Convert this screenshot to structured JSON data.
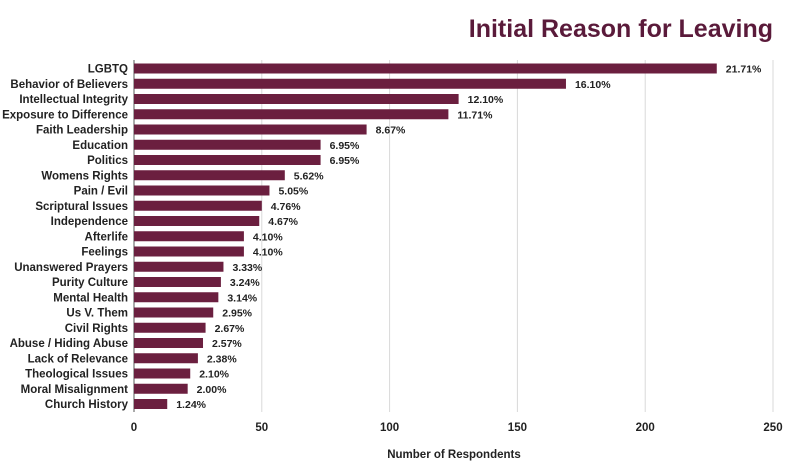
{
  "chart_data": {
    "type": "bar",
    "orientation": "horizontal",
    "title": "Initial Reason for Leaving",
    "xlabel": "Number of Respondents",
    "ylabel": "",
    "xlim": [
      0,
      250
    ],
    "xticks": [
      0,
      50,
      100,
      150,
      200,
      250
    ],
    "grid": true,
    "bar_color": "#6b1f3f",
    "title_color": "#5a1a3a",
    "categories": [
      "LGBTQ",
      "Behavior of Believers",
      "Intellectual Integrity",
      "Exposure to Difference",
      "Faith Leadership",
      "Education",
      "Politics",
      "Womens Rights",
      "Pain / Evil",
      "Scriptural Issues",
      "Independence",
      "Afterlife",
      "Feelings",
      "Unanswered Prayers",
      "Purity Culture",
      "Mental Health",
      "Us V. Them",
      "Civil Rights",
      "Abuse / Hiding Abuse",
      "Lack of Relevance",
      "Theological Issues",
      "Moral Misalignment",
      "Church History"
    ],
    "values": [
      228,
      169,
      127,
      123,
      91,
      73,
      73,
      59,
      53,
      50,
      49,
      43,
      43,
      35,
      34,
      33,
      31,
      28,
      27,
      25,
      22,
      21,
      13
    ],
    "labels": [
      "21.71%",
      "16.10%",
      "12.10%",
      "11.71%",
      "8.67%",
      "6.95%",
      "6.95%",
      "5.62%",
      "5.05%",
      "4.76%",
      "4.67%",
      "4.10%",
      "4.10%",
      "3.33%",
      "3.24%",
      "3.14%",
      "2.95%",
      "2.67%",
      "2.57%",
      "2.38%",
      "2.10%",
      "2.00%",
      "1.24%"
    ]
  }
}
